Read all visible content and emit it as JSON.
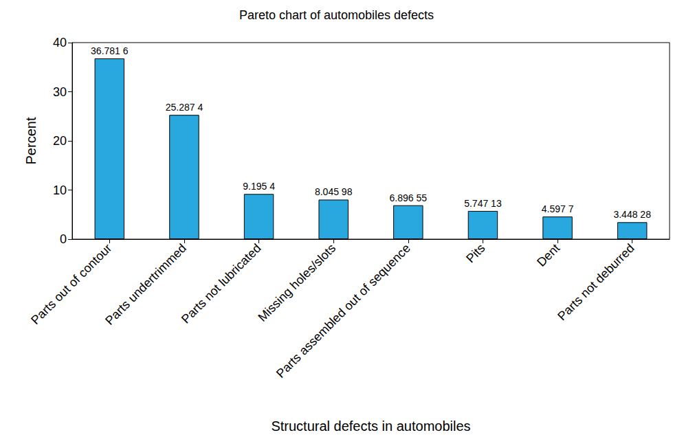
{
  "chart_data": {
    "type": "bar",
    "title": "Pareto chart of automobiles defects",
    "x_label": "Structural defects in automobiles",
    "y_label": "Percent",
    "categories": [
      "Parts out of contour",
      "Parts undertrimmed",
      "Parts not lubricated",
      "Missing holes/slots",
      "Parts assembled out of sequence",
      "Pits",
      "Dent",
      "Parts not deburred"
    ],
    "values": [
      36.7816,
      25.2874,
      9.1954,
      8.04598,
      6.89655,
      5.74713,
      4.5977,
      3.44828
    ],
    "value_labels": [
      "36.781 6",
      "25.287 4",
      "9.195 4",
      "8.045 98",
      "6.896 55",
      "5.747 13",
      "4.597 7",
      "3.448 28"
    ],
    "color": "#29a8e0",
    "ylim": [
      0,
      40
    ],
    "yticks": [
      0,
      10,
      20,
      30,
      40
    ],
    "grid": false,
    "data_labels": true
  }
}
